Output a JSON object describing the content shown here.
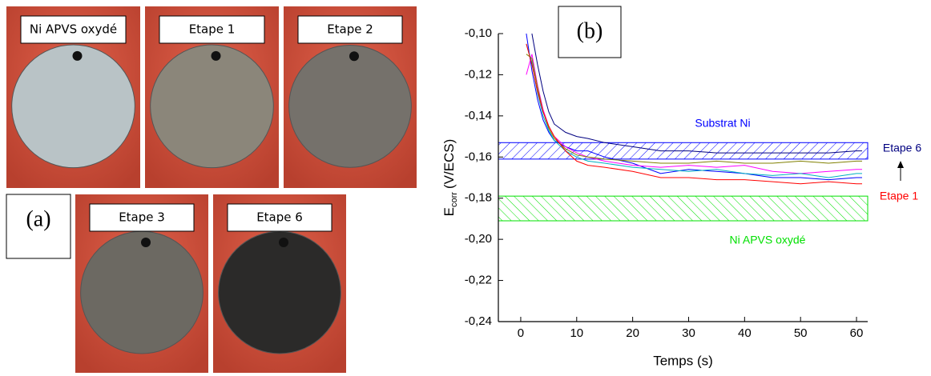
{
  "panel_a": {
    "label": "(a)",
    "photos": [
      {
        "label": "Ni APVS oxydé"
      },
      {
        "label": "Etape 1"
      },
      {
        "label": "Etape 2"
      },
      {
        "label": "Etape 3"
      },
      {
        "label": "Etape 6"
      }
    ]
  },
  "chart_data": {
    "type": "line",
    "panel_label": "(b)",
    "xlabel": "Temps (s)",
    "ylabel": {
      "main": "E",
      "sub": "corr",
      "unit": "(V/ECS)"
    },
    "x": [
      1,
      2,
      3,
      4,
      5,
      6,
      8,
      10,
      12,
      15,
      20,
      25,
      30,
      35,
      40,
      45,
      50,
      55,
      60,
      61
    ],
    "series": [
      {
        "color": "#000080",
        "values": [
          null,
          -0.1,
          -0.115,
          -0.128,
          -0.138,
          -0.144,
          -0.148,
          -0.15,
          -0.151,
          -0.153,
          -0.155,
          -0.157,
          -0.157,
          -0.158,
          -0.158,
          -0.158,
          -0.158,
          -0.158,
          -0.157,
          -0.157
        ]
      },
      {
        "color": "#0000ff",
        "values": [
          -0.1,
          -0.118,
          -0.132,
          -0.142,
          -0.148,
          -0.152,
          -0.155,
          -0.157,
          -0.157,
          -0.16,
          -0.163,
          -0.168,
          -0.166,
          -0.167,
          -0.168,
          -0.17,
          -0.17,
          -0.171,
          -0.17,
          -0.17
        ]
      },
      {
        "color": "#ff00ff",
        "values": [
          -0.12,
          -0.11,
          -0.125,
          -0.137,
          -0.145,
          -0.15,
          -0.155,
          -0.158,
          -0.16,
          -0.162,
          -0.164,
          -0.165,
          -0.164,
          -0.165,
          -0.164,
          -0.167,
          -0.168,
          -0.167,
          -0.166,
          -0.166
        ]
      },
      {
        "color": "#808000",
        "values": [
          -0.11,
          -0.112,
          -0.126,
          -0.138,
          -0.146,
          -0.151,
          -0.156,
          -0.159,
          -0.16,
          -0.161,
          -0.162,
          -0.163,
          -0.163,
          -0.162,
          -0.163,
          -0.163,
          -0.162,
          -0.163,
          -0.162,
          -0.162
        ]
      },
      {
        "color": "#00b0c0",
        "values": [
          -0.105,
          -0.114,
          -0.129,
          -0.14,
          -0.147,
          -0.152,
          -0.157,
          -0.16,
          -0.162,
          -0.163,
          -0.165,
          -0.166,
          -0.167,
          -0.166,
          -0.168,
          -0.169,
          -0.168,
          -0.17,
          -0.168,
          -0.168
        ]
      },
      {
        "color": "#ff0000",
        "values": [
          -0.105,
          -0.115,
          -0.128,
          -0.138,
          -0.145,
          -0.15,
          -0.157,
          -0.162,
          -0.164,
          -0.165,
          -0.167,
          -0.17,
          -0.17,
          -0.171,
          -0.171,
          -0.172,
          -0.173,
          -0.172,
          -0.173,
          -0.173
        ]
      }
    ],
    "bands": [
      {
        "label": "Substrat Ni",
        "color": "#0000ff",
        "range": [
          -0.161,
          -0.153
        ]
      },
      {
        "label": "Ni APVS oxydé",
        "color": "#00e000",
        "range": [
          -0.191,
          -0.179
        ]
      }
    ],
    "annotations": [
      {
        "text": "Etape 6",
        "color": "#000080"
      },
      {
        "text": "Etape 1",
        "color": "#ff0000"
      }
    ],
    "xlim": [
      -4,
      62
    ],
    "xticks": [
      0,
      10,
      20,
      30,
      40,
      50,
      60
    ],
    "ylim": [
      -0.24,
      -0.1
    ],
    "yticks": [
      {
        "value": -0.24,
        "label": "-0,24"
      },
      {
        "value": -0.22,
        "label": "-0,22"
      },
      {
        "value": -0.2,
        "label": "-0,20"
      },
      {
        "value": -0.18,
        "label": "-0,18"
      },
      {
        "value": -0.16,
        "label": "-0,16"
      },
      {
        "value": -0.14,
        "label": "-0,14"
      },
      {
        "value": -0.12,
        "label": "-0,12"
      },
      {
        "value": -0.1,
        "label": "-0,10"
      }
    ]
  }
}
